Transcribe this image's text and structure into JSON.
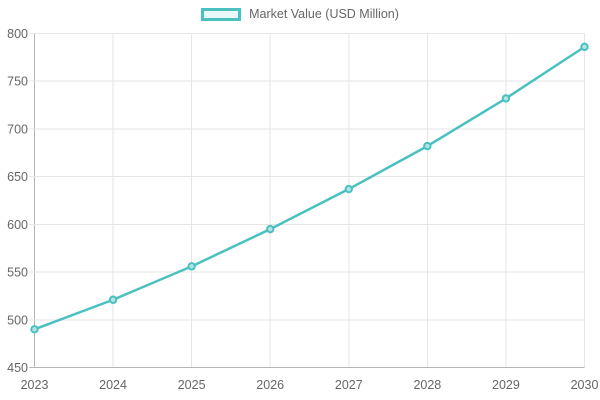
{
  "legend": {
    "label": "Market Value (USD Million)",
    "swatch_border_color": "#4bc0c0",
    "swatch_fill_color": "#e9f8f8"
  },
  "chart_data": {
    "type": "line",
    "title": "",
    "xlabel": "",
    "ylabel": "",
    "x": [
      2023,
      2024,
      2025,
      2026,
      2027,
      2028,
      2029,
      2030
    ],
    "series": [
      {
        "name": "Market Value (USD Million)",
        "values": [
          490,
          521,
          556,
          595,
          637,
          682,
          732,
          786
        ],
        "color": "#4bc0c0",
        "point_fill": "#b2e4e4"
      }
    ],
    "ylim": [
      450,
      800
    ],
    "yticks": [
      450,
      500,
      550,
      600,
      650,
      700,
      750,
      800
    ],
    "grid": true,
    "legend_position": "top",
    "colors": {
      "grid": "#e6e6e6",
      "axis": "#b5b5b5",
      "tick_label": "#666666"
    }
  }
}
